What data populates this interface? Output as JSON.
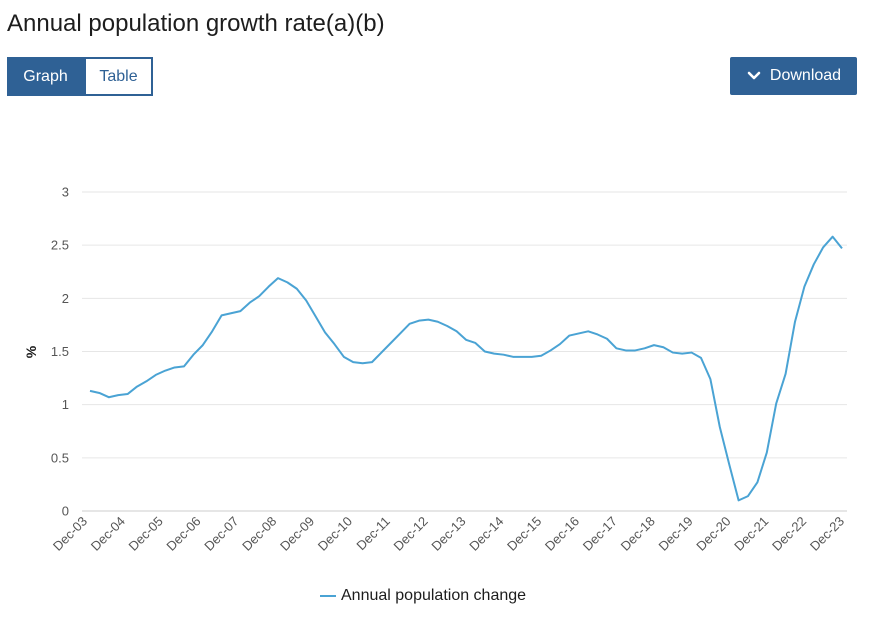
{
  "page": {
    "title": "Annual population growth rate(a)(b)"
  },
  "toggle": {
    "graph_label": "Graph",
    "table_label": "Table",
    "active": "Graph"
  },
  "download": {
    "label": "Download",
    "icon": "chevron-down-icon"
  },
  "colors": {
    "accent": "#2f6195",
    "series": "#4aa3d4",
    "grid": "#e6e6e6"
  },
  "chart_data": {
    "type": "line",
    "title": "",
    "xlabel": "",
    "ylabel": "%",
    "ylim": [
      0,
      3
    ],
    "yticks": [
      "0",
      "0.5",
      "1",
      "1.5",
      "2",
      "2.5",
      "3"
    ],
    "xticks": [
      "Dec-03",
      "Dec-04",
      "Dec-05",
      "Dec-06",
      "Dec-07",
      "Dec-08",
      "Dec-09",
      "Dec-10",
      "Dec-11",
      "Dec-12",
      "Dec-13",
      "Dec-14",
      "Dec-15",
      "Dec-16",
      "Dec-17",
      "Dec-18",
      "Dec-19",
      "Dec-20",
      "Dec-21",
      "Dec-22",
      "Dec-23"
    ],
    "grid": true,
    "legend_position": "bottom",
    "series": [
      {
        "name": "Annual population change",
        "color": "#4aa3d4",
        "values": [
          1.13,
          1.11,
          1.07,
          1.09,
          1.1,
          1.17,
          1.22,
          1.28,
          1.32,
          1.35,
          1.36,
          1.47,
          1.56,
          1.69,
          1.84,
          1.86,
          1.88,
          1.96,
          2.02,
          2.11,
          2.19,
          2.15,
          2.09,
          1.98,
          1.83,
          1.68,
          1.57,
          1.45,
          1.4,
          1.39,
          1.4,
          1.49,
          1.58,
          1.67,
          1.76,
          1.79,
          1.8,
          1.78,
          1.74,
          1.69,
          1.61,
          1.58,
          1.5,
          1.48,
          1.47,
          1.45,
          1.45,
          1.45,
          1.46,
          1.51,
          1.57,
          1.65,
          1.67,
          1.69,
          1.66,
          1.62,
          1.53,
          1.51,
          1.51,
          1.53,
          1.56,
          1.54,
          1.49,
          1.48,
          1.49,
          1.44,
          1.24,
          0.79,
          0.44,
          0.1,
          0.14,
          0.27,
          0.55,
          1.01,
          1.29,
          1.78,
          2.11,
          2.32,
          2.48,
          2.58,
          2.47
        ]
      }
    ]
  }
}
